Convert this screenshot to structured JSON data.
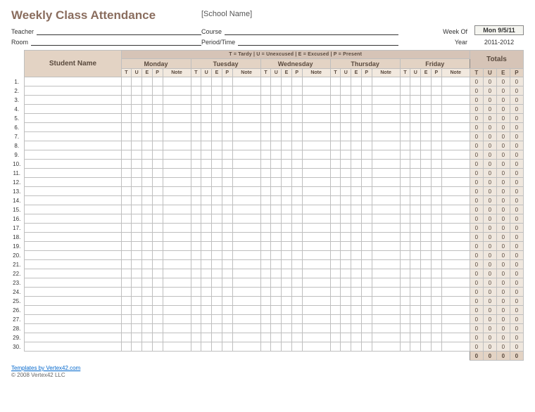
{
  "title": "Weekly Class Attendance",
  "school_name": "[School Name]",
  "labels": {
    "teacher": "Teacher",
    "room": "Room",
    "course": "Course",
    "period": "Period/Time",
    "week_of": "Week Of",
    "year": "Year"
  },
  "week_of_value": "Mon 9/5/11",
  "year_value": "2011-2012",
  "legend": "T = Tardy    |    U = Unexcused    |    E = Excused    |    P = Present",
  "columns": {
    "student": "Student Name",
    "totals": "Totals",
    "days": [
      "Monday",
      "Tuesday",
      "Wednesday",
      "Thursday",
      "Friday"
    ],
    "sub": [
      "T",
      "U",
      "E",
      "P",
      "Note"
    ],
    "tot_sub": [
      "T",
      "U",
      "E",
      "P"
    ]
  },
  "row_count": 30,
  "totals_default": "0",
  "footer": {
    "link_text": "Templates by Vertex42.com",
    "copyright": "© 2008 Vertex42 LLC"
  },
  "colors": {
    "title": "#8a6d5e",
    "header_dark": "#d6c4b7",
    "header_light": "#e3d3c4",
    "header_pale": "#f2e9df",
    "totals_bg": "#efe7de",
    "border": "#bfbfbf"
  }
}
